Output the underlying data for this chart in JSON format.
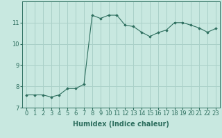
{
  "xlabel": "Humidex (Indice chaleur)",
  "x": [
    0,
    1,
    2,
    3,
    4,
    5,
    6,
    7,
    8,
    9,
    10,
    11,
    12,
    13,
    14,
    15,
    16,
    17,
    18,
    19,
    20,
    21,
    22,
    23
  ],
  "y": [
    7.6,
    7.6,
    7.6,
    7.5,
    7.6,
    7.9,
    7.9,
    8.1,
    11.35,
    11.2,
    11.35,
    11.35,
    10.88,
    10.82,
    10.55,
    10.35,
    10.53,
    10.65,
    11.0,
    11.0,
    10.88,
    10.75,
    10.55,
    10.72
  ],
  "line_color": "#2d6e5e",
  "bg_color": "#c8e8e0",
  "grid_color": "#aad0c8",
  "ylim": [
    7,
    12
  ],
  "xlim": [
    -0.5,
    23.5
  ],
  "yticks": [
    7,
    8,
    9,
    10,
    11
  ],
  "xticks": [
    0,
    1,
    2,
    3,
    4,
    5,
    6,
    7,
    8,
    9,
    10,
    11,
    12,
    13,
    14,
    15,
    16,
    17,
    18,
    19,
    20,
    21,
    22,
    23
  ],
  "marker": "D",
  "markersize": 1.8,
  "linewidth": 0.8,
  "xlabel_fontsize": 7,
  "tick_fontsize": 6
}
